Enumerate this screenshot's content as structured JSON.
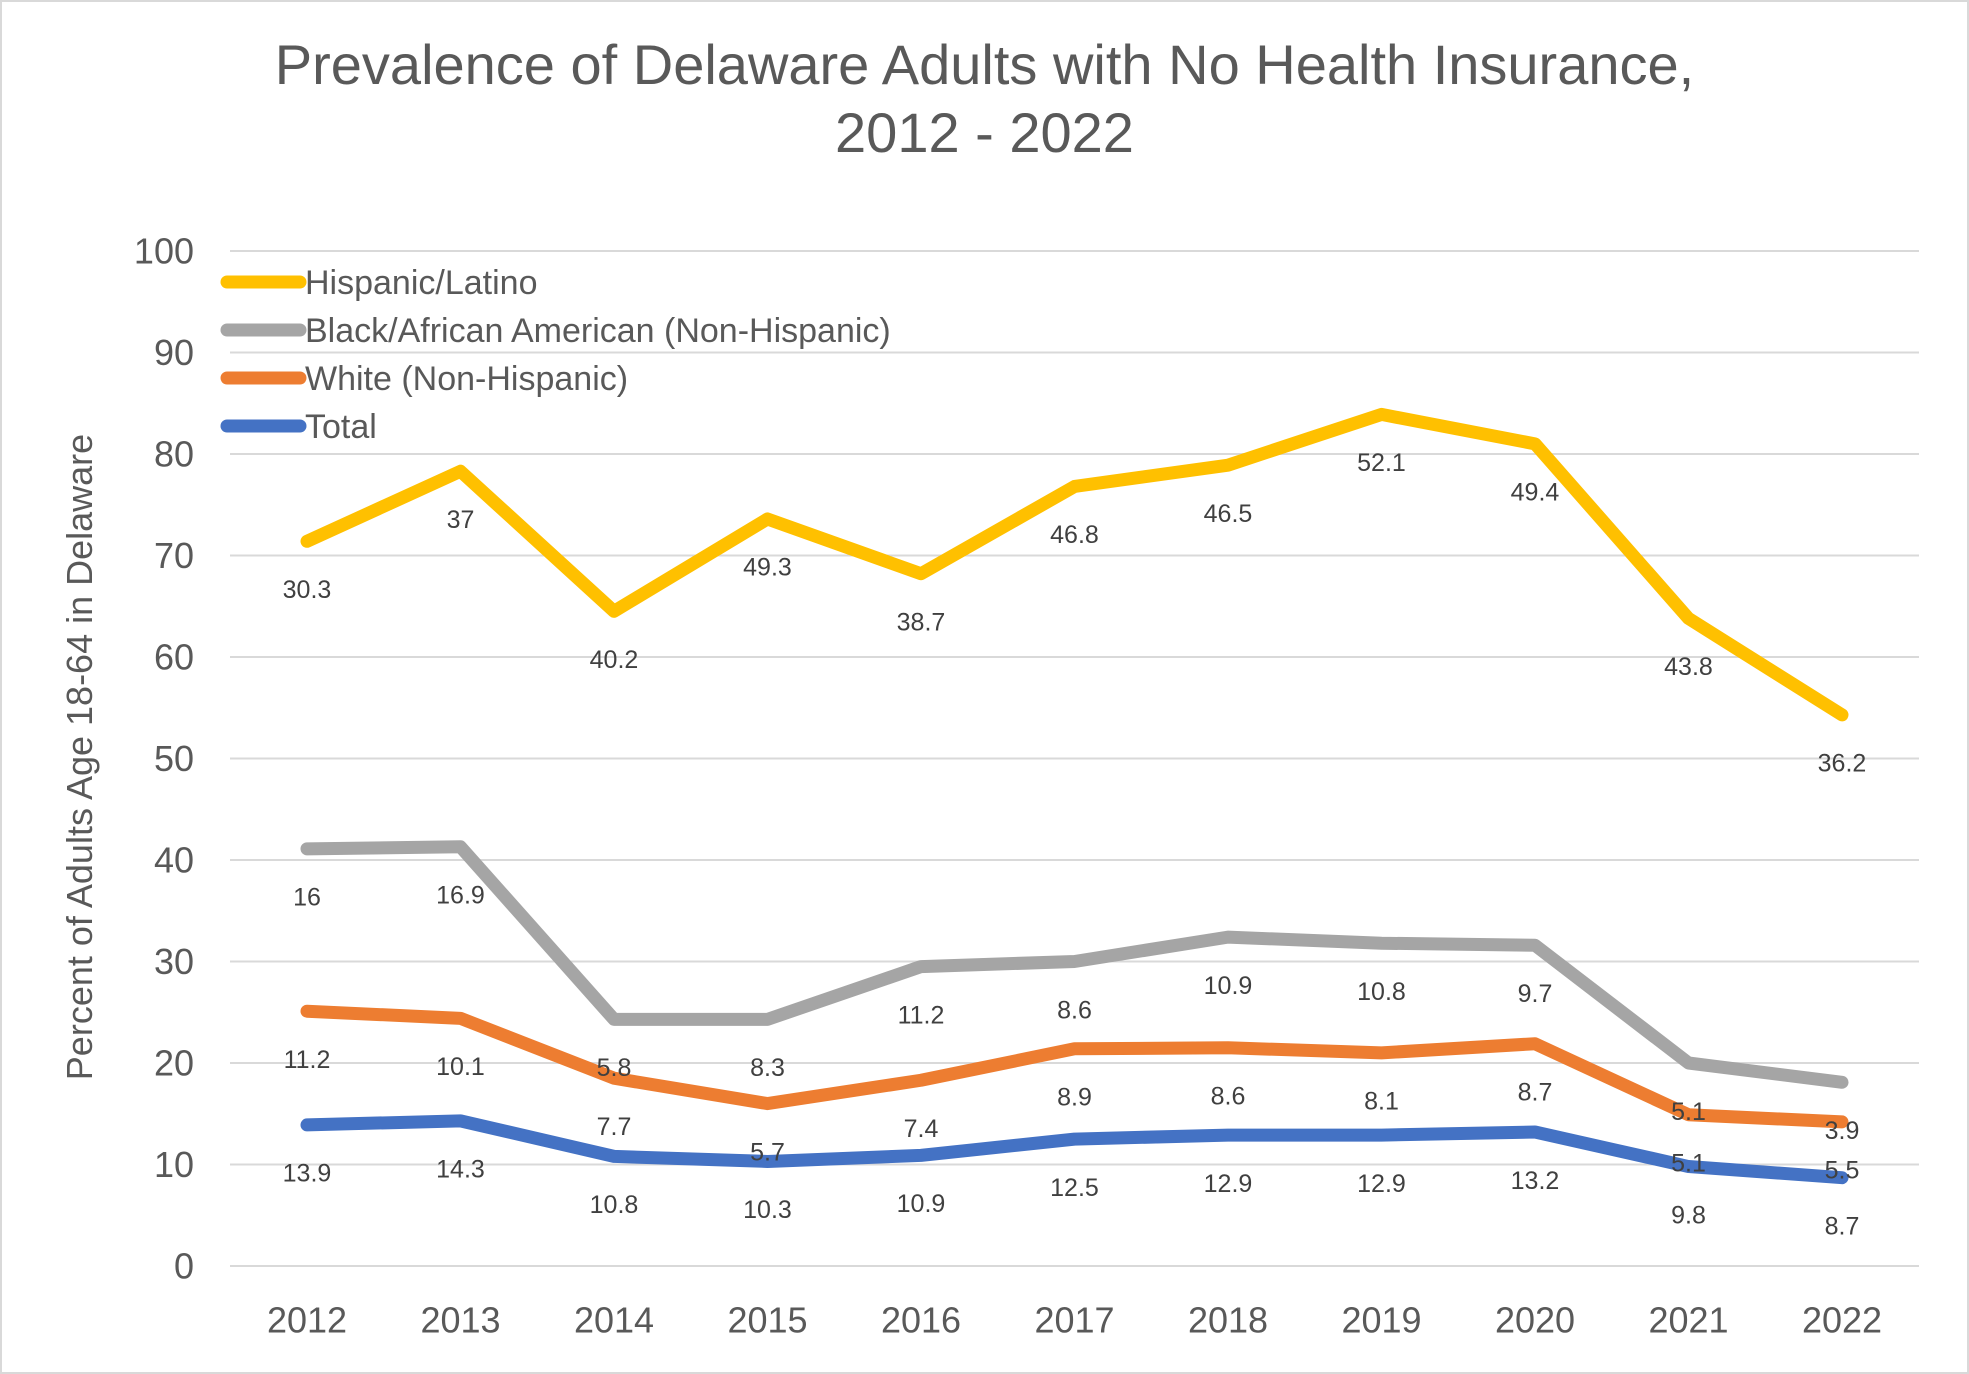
{
  "title": {
    "line1": "Prevalence of Delaware Adults with No Health Insurance,",
    "line2": "2012 - 2022"
  },
  "y_axis": {
    "title": "Percent of Adults Age 18-64 in Delaware",
    "min": 0,
    "max": 100,
    "step": 10,
    "tick_labels": [
      "0",
      "10",
      "20",
      "30",
      "40",
      "50",
      "60",
      "70",
      "80",
      "90",
      "100"
    ]
  },
  "x_axis": {
    "tick_labels": [
      "2012",
      "2013",
      "2014",
      "2015",
      "2016",
      "2017",
      "2018",
      "2019",
      "2020",
      "2021",
      "2022"
    ]
  },
  "legend": [
    {
      "label": "Hispanic/Latino",
      "color": "#FFC000"
    },
    {
      "label": "Black/African American (Non-Hispanic)",
      "color": "#A5A5A5"
    },
    {
      "label": "White (Non-Hispanic)",
      "color": "#ED7D31"
    },
    {
      "label": "Total",
      "color": "#4472C4"
    }
  ],
  "colors": {
    "hispanic": "#FFC000",
    "black": "#A5A5A5",
    "white": "#ED7D31",
    "total": "#4472C4",
    "gridline": "#D9D9D9",
    "axis_text": "#595959",
    "data_label_text": "#404040"
  },
  "chart_data": {
    "type": "line",
    "stacked": true,
    "title": "Prevalence of Delaware Adults with No Health Insurance, 2012 - 2022",
    "xlabel": "",
    "ylabel": "Percent of Adults Age 18-64 in Delaware",
    "ylim": [
      0,
      100
    ],
    "grid": "horizontal",
    "legend_position": "top-left-inside",
    "categories": [
      "2012",
      "2013",
      "2014",
      "2015",
      "2016",
      "2017",
      "2018",
      "2019",
      "2020",
      "2021",
      "2022"
    ],
    "series": [
      {
        "name": "Total",
        "color": "#4472C4",
        "values": [
          13.9,
          14.3,
          10.8,
          10.3,
          10.9,
          12.5,
          12.9,
          12.9,
          13.2,
          9.8,
          8.7
        ],
        "labels": [
          "13.9",
          "14.3",
          "10.8",
          "10.3",
          "10.9",
          "12.5",
          "12.9",
          "12.9",
          "13.2",
          "9.8",
          "8.7"
        ]
      },
      {
        "name": "White (Non-Hispanic)",
        "color": "#ED7D31",
        "values": [
          11.2,
          10.1,
          7.7,
          5.7,
          7.4,
          8.9,
          8.6,
          8.1,
          8.7,
          5.1,
          5.5
        ],
        "labels": [
          "11.2",
          "10.1",
          "7.7",
          "5.7",
          "7.4",
          "8.9",
          "8.6",
          "8.1",
          "8.7",
          "5.1",
          "5.5"
        ]
      },
      {
        "name": "Black/African American (Non-Hispanic)",
        "color": "#A5A5A5",
        "values": [
          16,
          16.9,
          5.8,
          8.3,
          11.2,
          8.6,
          10.9,
          10.8,
          9.7,
          5.1,
          3.9
        ],
        "labels": [
          "16",
          "16.9",
          "5.8",
          "8.3",
          "11.2",
          "8.6",
          "10.9",
          "10.8",
          "9.7",
          "5.1",
          "3.9"
        ]
      },
      {
        "name": "Hispanic/Latino",
        "color": "#FFC000",
        "values": [
          30.3,
          37,
          40.2,
          49.3,
          38.7,
          46.8,
          46.5,
          52.1,
          49.4,
          43.8,
          36.2
        ],
        "labels": [
          "30.3",
          "37",
          "40.2",
          "49.3",
          "38.7",
          "46.8",
          "46.5",
          "52.1",
          "49.4",
          "43.8",
          "36.2"
        ]
      }
    ],
    "note": "Rendered as a stacked line chart: plotted line positions are cumulative sums of the series in listed order (Total at bottom, then White, Black, Hispanic on top); data labels show the individual series values."
  }
}
